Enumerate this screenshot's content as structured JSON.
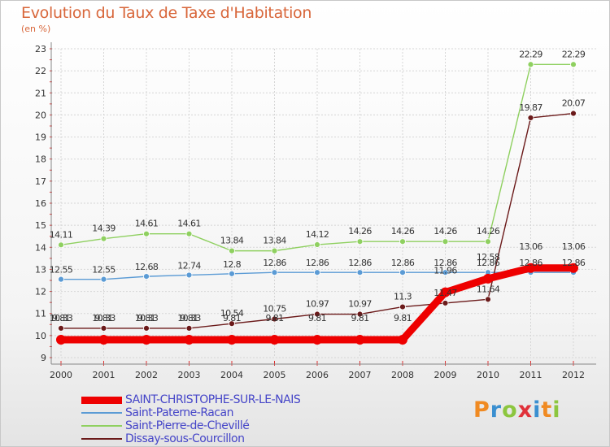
{
  "title": "Evolution du Taux de Taxe d'Habitation",
  "subtitle": "(en %)",
  "logo": {
    "text": "Proxiti",
    "colors": [
      "#f08a22",
      "#3a8fd0",
      "#8cc63f",
      "#e0313a",
      "#3a8fd0",
      "#f08a22",
      "#8cc63f"
    ]
  },
  "chart_data": {
    "type": "line",
    "x": [
      "2000",
      "2001",
      "2002",
      "2003",
      "2004",
      "2005",
      "2006",
      "2007",
      "2008",
      "2009",
      "2010",
      "2011",
      "2012"
    ],
    "ylim": [
      9,
      23
    ],
    "yticks": [
      "9",
      "10",
      "11",
      "12",
      "13",
      "14",
      "15",
      "16",
      "17",
      "18",
      "19",
      "20",
      "21",
      "22",
      "23"
    ],
    "grid": true,
    "legend_position": "bottom-left",
    "series": [
      {
        "name": "Saint-Pierre-de-Chevillé",
        "color": "#8fd060",
        "values": [
          14.11,
          14.39,
          14.61,
          14.61,
          13.84,
          13.84,
          14.12,
          14.26,
          14.26,
          14.26,
          14.26,
          22.29,
          22.29
        ],
        "labels": [
          "14.11",
          "14.39",
          "14.61",
          "14.61",
          "13.84",
          "13.84",
          "14.12",
          "14.26",
          "14.26",
          "14.26",
          "14.26",
          "22.29",
          "22.29"
        ]
      },
      {
        "name": "Saint-Paterne-Racan",
        "color": "#5b9bd5",
        "values": [
          12.55,
          12.55,
          12.68,
          12.74,
          12.8,
          12.86,
          12.86,
          12.86,
          12.86,
          12.86,
          12.86,
          12.86,
          12.86
        ],
        "labels": [
          "12.55",
          "12.55",
          "12.68",
          "12.74",
          "12.8",
          "12.86",
          "12.86",
          "12.86",
          "12.86",
          "12.86",
          "12.86",
          "12.86",
          "12.86"
        ]
      },
      {
        "name": "Dissay-sous-Courcillon",
        "color": "#6b1a1a",
        "values": [
          10.33,
          10.33,
          10.33,
          10.33,
          10.54,
          10.75,
          10.97,
          10.97,
          11.3,
          11.47,
          11.64,
          19.87,
          20.07
        ],
        "labels": [
          "10.33",
          "10.33",
          "10.33",
          "10.33",
          "10.54",
          "10.75",
          "10.97",
          "10.97",
          "11.3",
          "11.47",
          "11.64",
          "19.87",
          "20.07"
        ]
      },
      {
        "name": "SAINT-CHRISTOPHE-SUR-LE-NAIS",
        "color": "#ee0000",
        "values": [
          9.81,
          9.81,
          9.81,
          9.81,
          9.81,
          9.81,
          9.81,
          9.81,
          9.81,
          11.96,
          12.58,
          13.06,
          13.06
        ],
        "labels": [
          "9.81",
          "9.81",
          "9.81",
          "9.81",
          "9.81",
          "9.81",
          "9.81",
          "9.81",
          "9.81",
          "11.96",
          "12.58",
          "13.06",
          "13.06"
        ]
      }
    ],
    "legend_order": [
      "SAINT-CHRISTOPHE-SUR-LE-NAIS",
      "Saint-Paterne-Racan",
      "Saint-Pierre-de-Chevillé",
      "Dissay-sous-Courcillon"
    ]
  }
}
